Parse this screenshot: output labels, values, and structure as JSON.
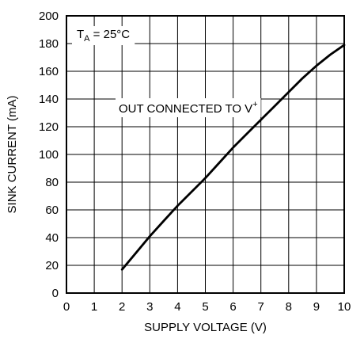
{
  "chart_data": {
    "type": "line",
    "title": "",
    "xlabel": "SUPPLY VOLTAGE (V)",
    "ylabel": "SINK CURRENT (mA)",
    "xlim": [
      0,
      10
    ],
    "ylim": [
      0,
      200
    ],
    "grid": true,
    "x_ticks": [
      "0",
      "1",
      "2",
      "3",
      "4",
      "5",
      "6",
      "7",
      "8",
      "9",
      "10"
    ],
    "y_ticks": [
      "0",
      "20",
      "40",
      "60",
      "80",
      "100",
      "120",
      "140",
      "160",
      "180",
      "200"
    ],
    "condition": {
      "main": "T",
      "sub": "A",
      "rest": " = 25°C"
    },
    "annotation": {
      "main": "OUT CONNECTED TO V",
      "sup": "+"
    },
    "series": [
      {
        "x": [
          2,
          2.5,
          3,
          3.5,
          4,
          4.5,
          5,
          5.5,
          6,
          6.5,
          7,
          7.5,
          8,
          8.5,
          9,
          9.5,
          10
        ],
        "y": [
          17,
          29,
          41,
          52,
          63,
          73,
          83,
          94,
          105,
          115,
          125,
          135,
          145,
          155,
          164,
          172,
          179
        ]
      }
    ]
  }
}
